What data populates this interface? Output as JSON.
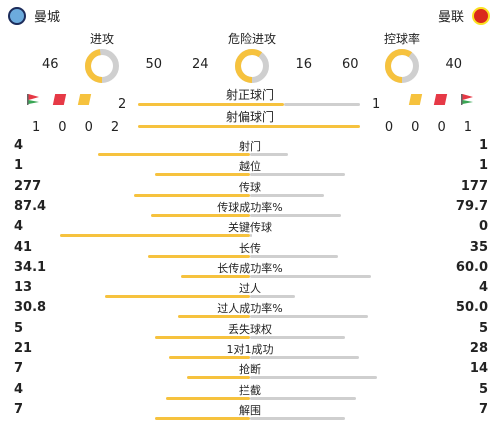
{
  "teams": {
    "home": "曼城",
    "away": "曼联"
  },
  "colors": {
    "home": "#f6c23e",
    "away": "#cfcfcf"
  },
  "donuts": [
    {
      "title": "进攻",
      "home": "46",
      "away": "50"
    },
    {
      "title": "危险进攻",
      "home": "24",
      "away": "16"
    },
    {
      "title": "控球率",
      "home": "60",
      "away": "40"
    }
  ],
  "shots_on": {
    "label": "射正球门",
    "home": "2",
    "away": "1"
  },
  "shots_off": {
    "label": "射偏球门",
    "home_counts": [
      "1",
      "0",
      "0",
      "2"
    ],
    "away_counts": [
      "0",
      "0",
      "0",
      "1"
    ]
  },
  "stats": [
    {
      "name": "射门",
      "home": "4",
      "away": "1"
    },
    {
      "name": "越位",
      "home": "1",
      "away": "1"
    },
    {
      "name": "传球",
      "home": "277",
      "away": "177"
    },
    {
      "name": "传球成功率%",
      "home": "87.4",
      "away": "79.7"
    },
    {
      "name": "关键传球",
      "home": "4",
      "away": "0"
    },
    {
      "name": "长传",
      "home": "41",
      "away": "35"
    },
    {
      "name": "长传成功率%",
      "home": "34.1",
      "away": "60.0"
    },
    {
      "name": "过人",
      "home": "13",
      "away": "4"
    },
    {
      "name": "过人成功率%",
      "home": "30.8",
      "away": "50.0"
    },
    {
      "name": "丢失球权",
      "home": "5",
      "away": "5"
    },
    {
      "name": "1对1成功",
      "home": "21",
      "away": "28"
    },
    {
      "name": "抢断",
      "home": "7",
      "away": "14"
    },
    {
      "name": "拦截",
      "home": "4",
      "away": "5"
    },
    {
      "name": "解围",
      "home": "7",
      "away": "7"
    }
  ]
}
